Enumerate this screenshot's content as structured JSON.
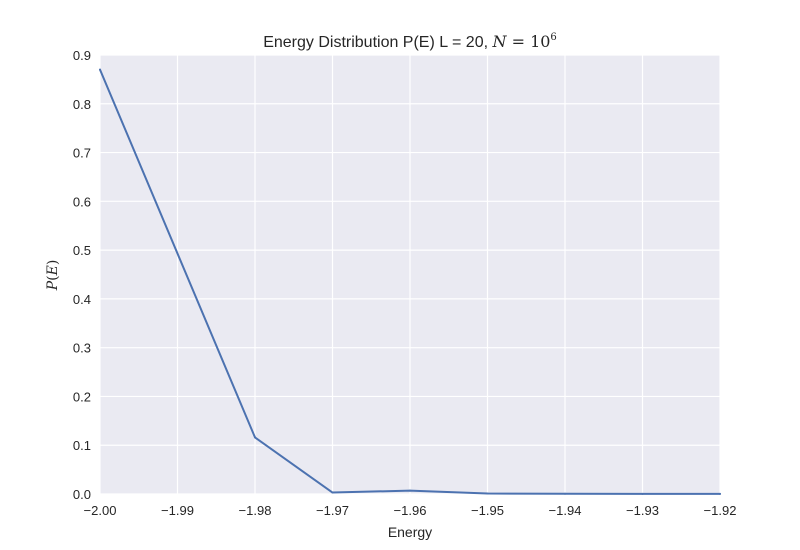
{
  "chart_data": {
    "type": "line",
    "title": {
      "prefix": "Energy Distribution P(E) L = 20, ",
      "math_var": "N",
      "math_eq": " = 10",
      "math_exp": "6"
    },
    "xlabel": "Energy",
    "ylabel": {
      "var": "P",
      "open": "(",
      "arg": "E",
      "close": ")"
    },
    "xlim": [
      -2.0,
      -1.92
    ],
    "ylim": [
      0.0,
      0.9
    ],
    "xticks": [
      -2.0,
      -1.99,
      -1.98,
      -1.97,
      -1.96,
      -1.95,
      -1.94,
      -1.93,
      -1.92
    ],
    "xtick_labels": [
      "−2.00",
      "−1.99",
      "−1.98",
      "−1.97",
      "−1.96",
      "−1.95",
      "−1.94",
      "−1.93",
      "−1.92"
    ],
    "yticks": [
      0.0,
      0.1,
      0.2,
      0.3,
      0.4,
      0.5,
      0.6,
      0.7,
      0.8,
      0.9
    ],
    "ytick_labels": [
      "0.0",
      "0.1",
      "0.2",
      "0.3",
      "0.4",
      "0.5",
      "0.6",
      "0.7",
      "0.8",
      "0.9"
    ],
    "grid": true,
    "series": [
      {
        "color": "#4c72b0",
        "x": [
          -2.0,
          -1.98,
          -1.97,
          -1.96,
          -1.95,
          -1.94,
          -1.93,
          -1.92
        ],
        "y": [
          0.87,
          0.116,
          0.003,
          0.007,
          0.001,
          0.0005,
          0.0003,
          0.0002
        ]
      }
    ]
  },
  "colors": {
    "plot_background": "#eaeaf2",
    "grid": "#ffffff",
    "text": "#262626"
  }
}
